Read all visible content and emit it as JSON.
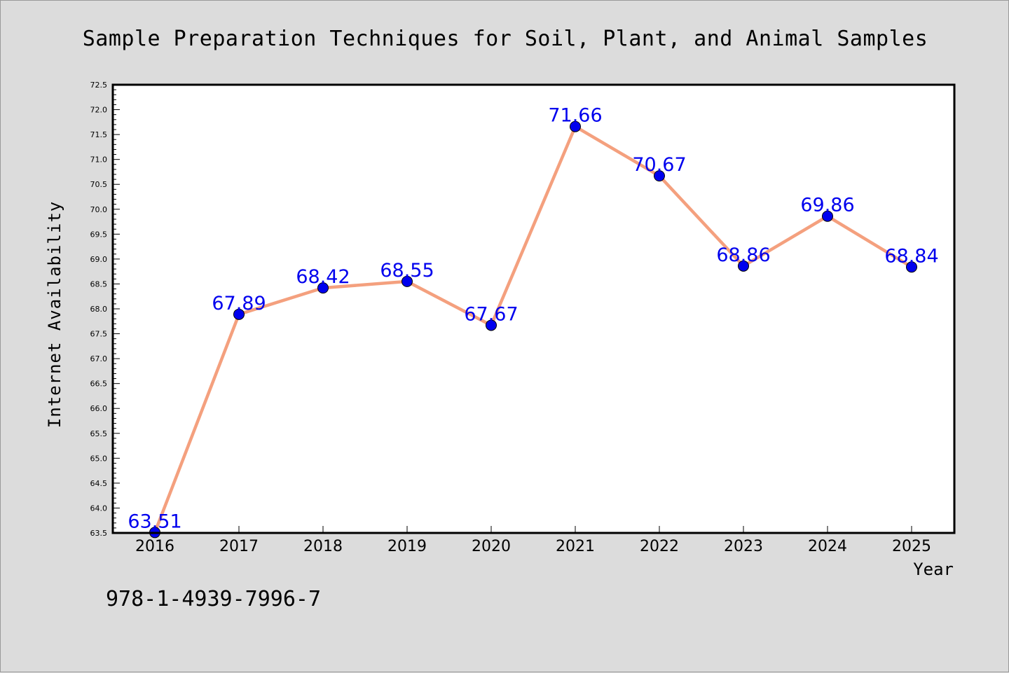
{
  "figure": {
    "background": "#dcdcdc",
    "isbn_text": "978-1-4939-7996-7"
  },
  "chart_data": {
    "type": "line",
    "title": "Sample Preparation Techniques for Soil, Plant, and Animal Samples",
    "xlabel": "Year",
    "ylabel": "Internet Availability",
    "categories": [
      "2016",
      "2017",
      "2018",
      "2019",
      "2020",
      "2021",
      "2022",
      "2023",
      "2024",
      "2025"
    ],
    "series": [
      {
        "values": [
          63.51,
          67.89,
          68.42,
          68.55,
          67.67,
          71.66,
          70.67,
          68.86,
          69.86,
          68.84
        ],
        "line_color": "#f4a07e",
        "marker_color": "#0000ee",
        "label_color": "#0000ee"
      }
    ],
    "ylim": [
      63.5,
      72.5
    ],
    "y_ticks": [
      "63.5",
      "64.0",
      "64.5",
      "65.0",
      "65.5",
      "66.0",
      "66.5",
      "67.0",
      "67.5",
      "68.0",
      "68.5",
      "69.0",
      "69.5",
      "70.0",
      "70.5",
      "71.0",
      "71.5",
      "72.0",
      "72.5"
    ],
    "data_labels": [
      "63.51",
      "67.89",
      "68.42",
      "68.55",
      "67.67",
      "71.66",
      "70.67",
      "68.86",
      "69.86",
      "68.84"
    ],
    "grid": false,
    "legend": "none"
  }
}
